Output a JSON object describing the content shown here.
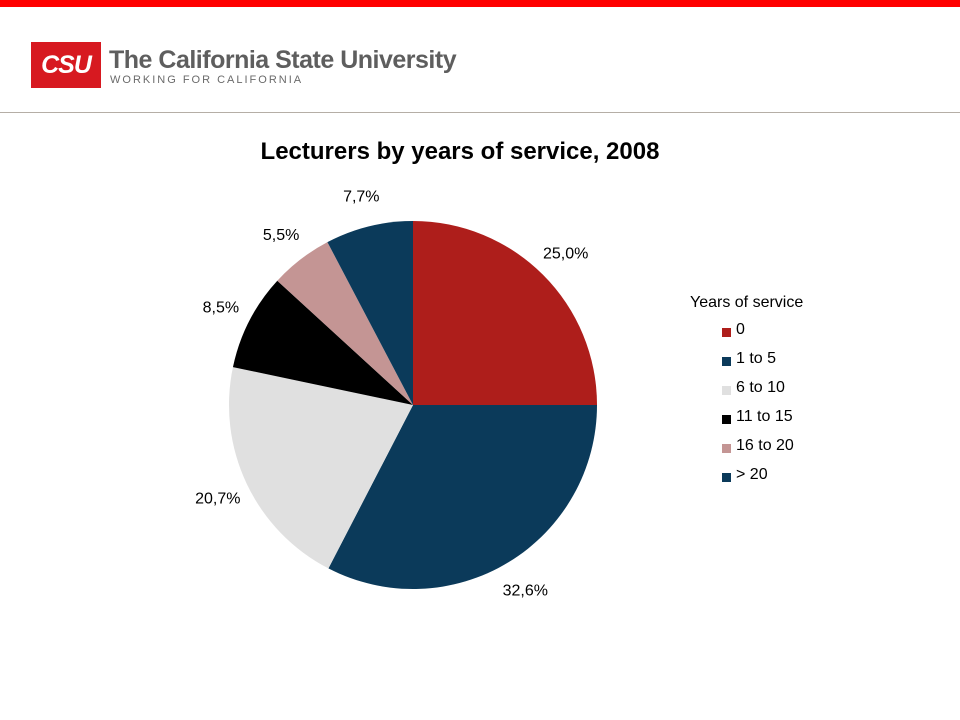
{
  "header": {
    "logo_abbrev": "CSU",
    "logo_name": "The California State University",
    "logo_tagline": "WORKING FOR CALIFORNIA"
  },
  "colors": {
    "top_bar": "#ff0000",
    "logo_red": "#d71920"
  },
  "chart_data": {
    "type": "pie",
    "title": "Lecturers by years of service, 2008",
    "legend_title": "Years of service",
    "legend_position": "right",
    "categories": [
      "0",
      "1 to 5",
      "6 to 10",
      "11 to 15",
      "16 to 20",
      "> 20"
    ],
    "values": [
      25.0,
      32.6,
      20.7,
      8.5,
      5.5,
      7.7
    ],
    "labels": [
      "25,0%",
      "32,6%",
      "20,7%",
      "8,5%",
      "5,5%",
      "7,7%"
    ],
    "colors": [
      "#ae1e1b",
      "#0b3a5a",
      "#e0e0e0",
      "#000000",
      "#c49594",
      "#0b3a5a"
    ],
    "start": "12 o'clock",
    "direction": "clockwise"
  }
}
